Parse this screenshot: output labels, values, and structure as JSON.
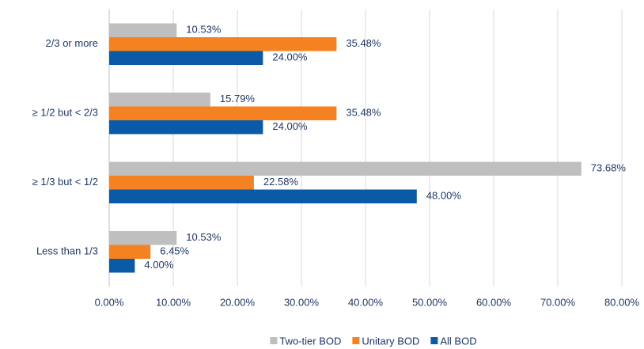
{
  "chart_data": {
    "type": "hbar",
    "categories": [
      "2/3 or more",
      "≥ 1/2 but < 2/3",
      "≥ 1/3 but < 1/2",
      "Less than 1/3"
    ],
    "series": [
      {
        "name": "Two-tier BOD",
        "color": "#bfbfbf",
        "values": [
          10.53,
          15.79,
          73.68,
          10.53
        ],
        "value_labels": [
          "10.53%",
          "15.79%",
          "73.68%",
          "10.53%"
        ]
      },
      {
        "name": "Unitary BOD",
        "color": "#f58220",
        "values": [
          35.48,
          35.48,
          22.58,
          6.45
        ],
        "value_labels": [
          "35.48%",
          "35.48%",
          "22.58%",
          "6.45%"
        ]
      },
      {
        "name": "All BOD",
        "color": "#0a5aa8",
        "values": [
          24.0,
          24.0,
          48.0,
          4.0
        ],
        "value_labels": [
          "24.00%",
          "24.00%",
          "48.00%",
          "4.00%"
        ]
      }
    ],
    "xlim": [
      0,
      80
    ],
    "xticks": [
      {
        "value": 0,
        "label": "0.00%"
      },
      {
        "value": 10,
        "label": "10.00%"
      },
      {
        "value": 20,
        "label": "20.00%"
      },
      {
        "value": 30,
        "label": "30.00%"
      },
      {
        "value": 40,
        "label": "40.00%"
      },
      {
        "value": 50,
        "label": "50.00%"
      },
      {
        "value": 60,
        "label": "60.00%"
      },
      {
        "value": 70,
        "label": "70.00%"
      },
      {
        "value": 80,
        "label": "80.00%"
      }
    ],
    "grid": true,
    "legend": "bottom"
  }
}
